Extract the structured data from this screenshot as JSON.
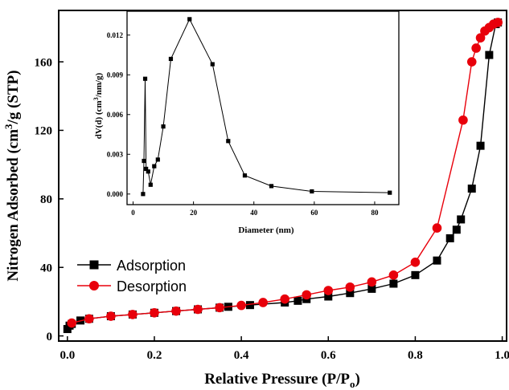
{
  "chart_data": [
    {
      "type": "line",
      "xlabel": "Relative Pressure (P/P",
      "xlabel_sub": "o",
      "xlabel_close": ")",
      "ylabel": "Nitrogen Adsorbed (cm",
      "ylabel_sup": "3",
      "ylabel_rest": "/g (STP)",
      "xlim": [
        -0.02,
        1.01
      ],
      "ylim": [
        -3,
        190
      ],
      "xticks": [
        "0.0",
        "0.2",
        "0.4",
        "0.6",
        "0.8",
        "1.0"
      ],
      "xtick_values": [
        0,
        0.2,
        0.4,
        0.6,
        0.8,
        1.0
      ],
      "yticks": [
        "0",
        "40",
        "80",
        "120",
        "160"
      ],
      "ytick_values": [
        0,
        40,
        80,
        120,
        160
      ],
      "grid": false,
      "legend_position": "bottom-left",
      "series": [
        {
          "name": "Adsorption",
          "color": "#000000",
          "marker": "square",
          "x": [
            0.0,
            0.005,
            0.01,
            0.03,
            0.05,
            0.1,
            0.15,
            0.2,
            0.25,
            0.3,
            0.35,
            0.37,
            0.42,
            0.5,
            0.53,
            0.55,
            0.6,
            0.65,
            0.7,
            0.75,
            0.8,
            0.85,
            0.88,
            0.895,
            0.905,
            0.93,
            0.95,
            0.97,
            0.985,
            0.99
          ],
          "y": [
            4,
            6,
            7,
            9,
            10,
            11.5,
            12.5,
            13.5,
            14.5,
            15.5,
            16.5,
            17,
            18,
            19.5,
            20.5,
            21.5,
            23,
            25,
            27.5,
            30.5,
            35.5,
            44,
            57,
            62,
            68,
            86,
            111,
            164,
            182,
            183
          ]
        },
        {
          "name": "Desorption",
          "color": "#e8000b",
          "marker": "circle",
          "x": [
            0.01,
            0.05,
            0.1,
            0.15,
            0.2,
            0.25,
            0.3,
            0.35,
            0.4,
            0.45,
            0.5,
            0.55,
            0.6,
            0.65,
            0.7,
            0.75,
            0.8,
            0.85,
            0.91,
            0.93,
            0.94,
            0.95,
            0.96,
            0.97,
            0.98,
            0.99
          ],
          "y": [
            7.5,
            10,
            11.5,
            12.5,
            13.5,
            14.5,
            15.5,
            16.5,
            17.8,
            19.5,
            21.5,
            24,
            26.5,
            28.5,
            31.5,
            35.5,
            43,
            63,
            126,
            160,
            168,
            174,
            178,
            180,
            182,
            183
          ]
        }
      ]
    },
    {
      "type": "line",
      "role": "inset",
      "xlabel": "Diameter (nm)",
      "ylabel": "dV(d) (cm",
      "ylabel_sup": "3",
      "ylabel_rest": "/nm/g)",
      "xlim": [
        -2,
        88
      ],
      "ylim": [
        -0.0008,
        0.0138
      ],
      "xticks": [
        "0",
        "20",
        "40",
        "60",
        "80"
      ],
      "xtick_values": [
        0,
        20,
        40,
        60,
        80
      ],
      "yticks": [
        "0.000",
        "0.003",
        "0.006",
        "0.009",
        "0.012"
      ],
      "ytick_values": [
        0,
        0.003,
        0.006,
        0.009,
        0.012
      ],
      "grid": false,
      "series": [
        {
          "color": "#000000",
          "marker": "square",
          "x": [
            3.3,
            3.6,
            4.0,
            4.3,
            5.0,
            5.8,
            7.0,
            8.2,
            10.0,
            12.5,
            18.7,
            26.3,
            31.5,
            37.0,
            45.8,
            59.2,
            85.0
          ],
          "y": [
            0.0,
            0.0025,
            0.0087,
            0.0019,
            0.0017,
            0.0007,
            0.0021,
            0.0026,
            0.0051,
            0.0102,
            0.0132,
            0.0098,
            0.004,
            0.0014,
            0.0006,
            0.0002,
            0.0001
          ]
        }
      ]
    }
  ],
  "legend": {
    "items": [
      {
        "label": "Adsorption",
        "color": "#000000",
        "marker": "square"
      },
      {
        "label": "Desorption",
        "color": "#e8000b",
        "marker": "circle"
      }
    ]
  }
}
